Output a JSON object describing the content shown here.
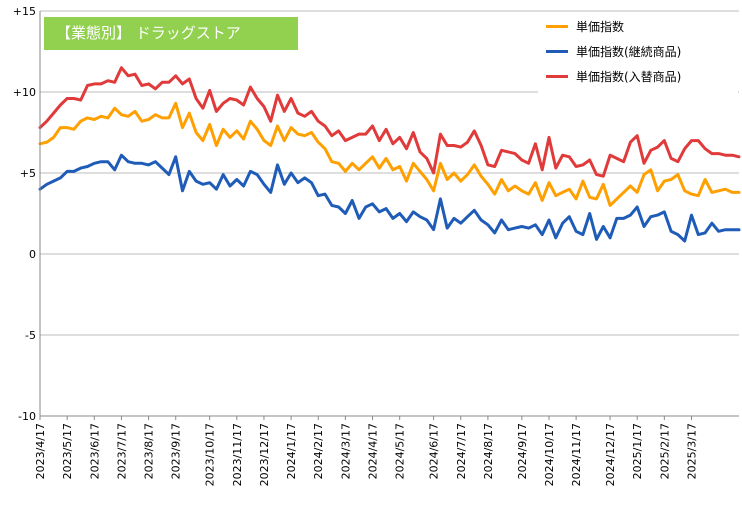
{
  "badge": {
    "text": "【業態別】 ドラッグストア"
  },
  "chart_data": {
    "type": "line",
    "ylim": [
      -10,
      15
    ],
    "yticks": [
      {
        "value": 15,
        "label": "+15"
      },
      {
        "value": 10,
        "label": "+10"
      },
      {
        "value": 5,
        "label": "+5"
      },
      {
        "value": 0,
        "label": "0"
      },
      {
        "value": -5,
        "label": "-5"
      },
      {
        "value": -10,
        "label": "-10"
      }
    ],
    "x_count": 104,
    "xticks": [
      {
        "index": 0,
        "label": "2023/4/17"
      },
      {
        "index": 4,
        "label": "2023/5/17"
      },
      {
        "index": 8,
        "label": "2023/6/17"
      },
      {
        "index": 12,
        "label": "2023/7/17"
      },
      {
        "index": 16,
        "label": "2023/8/17"
      },
      {
        "index": 20,
        "label": "2023/9/17"
      },
      {
        "index": 25,
        "label": "2023/10/17"
      },
      {
        "index": 29,
        "label": "2023/11/17"
      },
      {
        "index": 33,
        "label": "2023/12/17"
      },
      {
        "index": 37,
        "label": "2024/1/17"
      },
      {
        "index": 41,
        "label": "2024/2/17"
      },
      {
        "index": 45,
        "label": "2024/3/17"
      },
      {
        "index": 49,
        "label": "2024/4/17"
      },
      {
        "index": 53,
        "label": "2024/5/17"
      },
      {
        "index": 58,
        "label": "2024/6/17"
      },
      {
        "index": 62,
        "label": "2024/7/17"
      },
      {
        "index": 66,
        "label": "2024/8/17"
      },
      {
        "index": 71,
        "label": "2024/9/17"
      },
      {
        "index": 75,
        "label": "2024/10/17"
      },
      {
        "index": 79,
        "label": "2024/11/17"
      },
      {
        "index": 84,
        "label": "2024/12/17"
      },
      {
        "index": 88,
        "label": "2025/1/17"
      },
      {
        "index": 92,
        "label": "2025/2/17"
      },
      {
        "index": 96,
        "label": "2025/3/17"
      }
    ],
    "grid": true,
    "legend": "top-right",
    "series": [
      {
        "name": "単価指数",
        "color": "#ffa000",
        "values": [
          6.8,
          6.9,
          7.2,
          7.8,
          7.8,
          7.7,
          8.2,
          8.4,
          8.3,
          8.5,
          8.4,
          9.0,
          8.6,
          8.5,
          8.8,
          8.2,
          8.3,
          8.6,
          8.4,
          8.4,
          9.3,
          7.8,
          8.7,
          7.5,
          7.0,
          8.0,
          6.7,
          7.7,
          7.2,
          7.6,
          7.1,
          8.2,
          7.7,
          7.0,
          6.7,
          7.9,
          7.0,
          7.8,
          7.4,
          7.3,
          7.5,
          6.9,
          6.5,
          5.7,
          5.6,
          5.1,
          5.6,
          5.2,
          5.6,
          6.0,
          5.3,
          5.9,
          5.2,
          5.4,
          4.5,
          5.6,
          5.1,
          4.6,
          3.9,
          5.6,
          4.6,
          5.0,
          4.5,
          4.9,
          5.5,
          4.8,
          4.3,
          3.7,
          4.6,
          3.9,
          4.2,
          3.9,
          3.7,
          4.4,
          3.3,
          4.4,
          3.6,
          3.8,
          4.0,
          3.4,
          4.5,
          3.5,
          3.4,
          4.3,
          3.0,
          3.4,
          3.8,
          4.2,
          3.8,
          4.9,
          5.2,
          3.9,
          4.5,
          4.6,
          4.9,
          3.9,
          3.7,
          3.6,
          4.6,
          3.8,
          3.9,
          4.0,
          3.8,
          3.8
        ]
      },
      {
        "name": "単価指数(継続商品)",
        "color": "#1f5cb8",
        "values": [
          4.0,
          4.3,
          4.5,
          4.7,
          5.1,
          5.1,
          5.3,
          5.4,
          5.6,
          5.7,
          5.7,
          5.2,
          6.1,
          5.7,
          5.6,
          5.6,
          5.5,
          5.7,
          5.3,
          4.9,
          6.0,
          3.9,
          5.1,
          4.5,
          4.3,
          4.4,
          4.0,
          4.9,
          4.2,
          4.6,
          4.2,
          5.1,
          4.9,
          4.3,
          3.8,
          5.5,
          4.3,
          5.0,
          4.4,
          4.7,
          4.4,
          3.6,
          3.7,
          3.0,
          2.9,
          2.5,
          3.3,
          2.2,
          2.9,
          3.1,
          2.6,
          2.8,
          2.2,
          2.5,
          2.0,
          2.6,
          2.3,
          2.1,
          1.5,
          3.4,
          1.6,
          2.2,
          1.9,
          2.3,
          2.7,
          2.1,
          1.8,
          1.3,
          2.1,
          1.5,
          1.6,
          1.7,
          1.6,
          1.8,
          1.2,
          2.1,
          1.0,
          1.9,
          2.3,
          1.4,
          1.2,
          2.5,
          0.9,
          1.7,
          1.0,
          2.2,
          2.2,
          2.4,
          2.9,
          1.7,
          2.3,
          2.4,
          2.6,
          1.4,
          1.2,
          0.8,
          2.4,
          1.2,
          1.3,
          1.9,
          1.4,
          1.5,
          1.5,
          1.5
        ]
      },
      {
        "name": "単価指数(入替商品)",
        "color": "#e03a3a",
        "values": [
          7.8,
          8.2,
          8.7,
          9.2,
          9.6,
          9.6,
          9.5,
          10.4,
          10.5,
          10.5,
          10.7,
          10.6,
          11.5,
          11.0,
          11.1,
          10.4,
          10.5,
          10.2,
          10.6,
          10.6,
          11.0,
          10.5,
          10.8,
          9.6,
          9.0,
          10.1,
          8.8,
          9.3,
          9.6,
          9.5,
          9.2,
          10.3,
          9.6,
          9.1,
          8.2,
          9.8,
          8.8,
          9.6,
          8.7,
          8.5,
          8.8,
          8.2,
          7.9,
          7.3,
          7.6,
          7.0,
          7.2,
          7.4,
          7.4,
          7.9,
          7.0,
          7.7,
          6.8,
          7.2,
          6.5,
          7.5,
          6.3,
          5.9,
          5.0,
          7.4,
          6.7,
          6.7,
          6.6,
          6.9,
          7.6,
          6.7,
          5.5,
          5.4,
          6.4,
          6.3,
          6.2,
          5.8,
          5.6,
          6.8,
          5.2,
          7.2,
          5.3,
          6.1,
          6.0,
          5.4,
          5.5,
          5.8,
          4.9,
          4.8,
          6.1,
          5.9,
          5.7,
          6.9,
          7.3,
          5.6,
          6.4,
          6.6,
          7.0,
          5.9,
          5.7,
          6.5,
          7.0,
          7.0,
          6.5,
          6.2,
          6.2,
          6.1,
          6.1,
          6.0
        ]
      }
    ]
  }
}
